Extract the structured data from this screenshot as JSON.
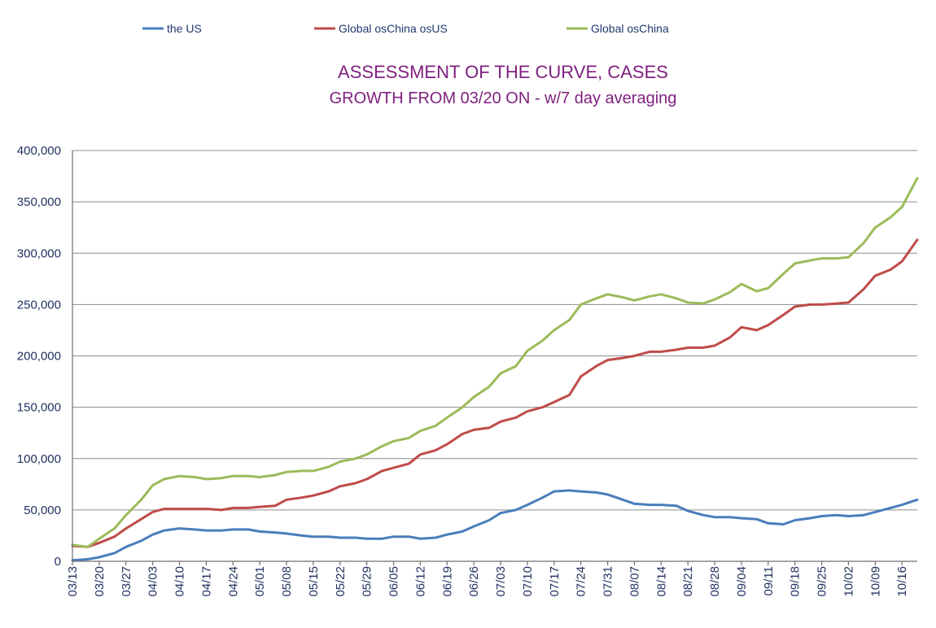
{
  "chart_data": {
    "type": "line",
    "title": "ASSESSMENT OF THE CURVE, CASES",
    "subtitle": "GROWTH FROM 03/20 ON - w/7 day averaging",
    "xlabel": "",
    "ylabel": "",
    "ylim": [
      0,
      400000
    ],
    "y_ticks": [
      0,
      50000,
      100000,
      150000,
      200000,
      250000,
      300000,
      350000,
      400000
    ],
    "y_tick_labels": [
      "0",
      "50,000",
      "100,000",
      "150,000",
      "200,000",
      "250,000",
      "300,000",
      "350,000",
      "400,000"
    ],
    "x_tick_labels": [
      "03/13",
      "03/20",
      "03/27",
      "04/03",
      "04/10",
      "04/17",
      "04/24",
      "05/01",
      "05/08",
      "05/15",
      "05/22",
      "05/29",
      "06/05",
      "06/12",
      "06/19",
      "06/26",
      "07/03",
      "07/10",
      "07/17",
      "07/24",
      "07/31",
      "08/07",
      "08/14",
      "08/21",
      "08/28",
      "09/04",
      "09/11",
      "09/18",
      "09/25",
      "10/02",
      "10/09",
      "10/16"
    ],
    "x_start": "03/13",
    "x_end": "10/20",
    "grid": true,
    "legend_position": "top",
    "series": [
      {
        "name": "the US",
        "color": "#4a7ebb",
        "x": [
          "03/13",
          "03/17",
          "03/20",
          "03/24",
          "03/27",
          "03/31",
          "04/03",
          "04/06",
          "04/10",
          "04/14",
          "04/17",
          "04/21",
          "04/24",
          "04/28",
          "05/01",
          "05/05",
          "05/08",
          "05/12",
          "05/15",
          "05/19",
          "05/22",
          "05/26",
          "05/29",
          "06/02",
          "06/05",
          "06/09",
          "06/12",
          "06/16",
          "06/19",
          "06/23",
          "06/26",
          "06/30",
          "07/03",
          "07/07",
          "07/10",
          "07/14",
          "07/17",
          "07/21",
          "07/24",
          "07/28",
          "07/31",
          "08/04",
          "08/07",
          "08/11",
          "08/14",
          "08/18",
          "08/21",
          "08/25",
          "08/28",
          "09/01",
          "09/04",
          "09/08",
          "09/11",
          "09/15",
          "09/18",
          "09/22",
          "09/25",
          "09/29",
          "10/02",
          "10/06",
          "10/09",
          "10/13",
          "10/16",
          "10/20"
        ],
        "values": [
          1000,
          2000,
          4000,
          8000,
          14000,
          20000,
          26000,
          30000,
          32000,
          31000,
          30000,
          30000,
          31000,
          31000,
          29000,
          28000,
          27000,
          25000,
          24000,
          24000,
          23000,
          23000,
          22000,
          22000,
          24000,
          24000,
          22000,
          23000,
          26000,
          29000,
          34000,
          40000,
          47000,
          50000,
          55000,
          62000,
          68000,
          69000,
          68000,
          67000,
          65000,
          60000,
          56000,
          55000,
          55000,
          54000,
          49000,
          45000,
          43000,
          43000,
          42000,
          41000,
          37000,
          36000,
          40000,
          42000,
          44000,
          45000,
          44000,
          45000,
          48000,
          52000,
          55000,
          60000
        ]
      },
      {
        "name": "Global osChina osUS",
        "color": "#be4b48",
        "x": [
          "03/13",
          "03/17",
          "03/20",
          "03/24",
          "03/27",
          "03/31",
          "04/03",
          "04/06",
          "04/10",
          "04/14",
          "04/17",
          "04/21",
          "04/24",
          "04/28",
          "05/01",
          "05/05",
          "05/08",
          "05/12",
          "05/15",
          "05/19",
          "05/22",
          "05/26",
          "05/29",
          "06/02",
          "06/05",
          "06/09",
          "06/12",
          "06/16",
          "06/19",
          "06/23",
          "06/26",
          "06/30",
          "07/03",
          "07/07",
          "07/10",
          "07/14",
          "07/17",
          "07/21",
          "07/24",
          "07/28",
          "07/31",
          "08/04",
          "08/07",
          "08/11",
          "08/14",
          "08/18",
          "08/21",
          "08/25",
          "08/28",
          "09/01",
          "09/04",
          "09/08",
          "09/11",
          "09/15",
          "09/18",
          "09/22",
          "09/25",
          "09/29",
          "10/02",
          "10/06",
          "10/09",
          "10/13",
          "10/16",
          "10/20"
        ],
        "values": [
          15000,
          14000,
          18000,
          24000,
          32000,
          41000,
          48000,
          51000,
          51000,
          51000,
          51000,
          50000,
          52000,
          52000,
          53000,
          54000,
          60000,
          62000,
          64000,
          68000,
          73000,
          76000,
          80000,
          88000,
          91000,
          95000,
          104000,
          108000,
          114000,
          124000,
          128000,
          130000,
          136000,
          140000,
          146000,
          150000,
          155000,
          162000,
          180000,
          190000,
          196000,
          198000,
          200000,
          204000,
          204000,
          206000,
          208000,
          208000,
          210000,
          218000,
          228000,
          225000,
          230000,
          240000,
          248000,
          250000,
          250000,
          251000,
          252000,
          265000,
          278000,
          284000,
          292000,
          313000
        ]
      },
      {
        "name": "Global osChina",
        "color": "#9bbb59",
        "x": [
          "03/13",
          "03/17",
          "03/20",
          "03/24",
          "03/27",
          "03/31",
          "04/03",
          "04/06",
          "04/10",
          "04/14",
          "04/17",
          "04/21",
          "04/24",
          "04/28",
          "05/01",
          "05/05",
          "05/08",
          "05/12",
          "05/15",
          "05/19",
          "05/22",
          "05/26",
          "05/29",
          "06/02",
          "06/05",
          "06/09",
          "06/12",
          "06/16",
          "06/19",
          "06/23",
          "06/26",
          "06/30",
          "07/03",
          "07/07",
          "07/10",
          "07/14",
          "07/17",
          "07/21",
          "07/24",
          "07/28",
          "07/31",
          "08/04",
          "08/07",
          "08/11",
          "08/14",
          "08/18",
          "08/21",
          "08/25",
          "08/28",
          "09/01",
          "09/04",
          "09/08",
          "09/11",
          "09/15",
          "09/18",
          "09/22",
          "09/25",
          "09/29",
          "10/02",
          "10/06",
          "10/09",
          "10/13",
          "10/16",
          "10/20"
        ],
        "values": [
          16000,
          14000,
          22000,
          32000,
          45000,
          60000,
          74000,
          80000,
          83000,
          82000,
          80000,
          81000,
          83000,
          83000,
          82000,
          84000,
          87000,
          88000,
          88000,
          92000,
          97000,
          100000,
          104000,
          112000,
          117000,
          120000,
          127000,
          132000,
          140000,
          150000,
          160000,
          170000,
          183000,
          190000,
          205000,
          215000,
          225000,
          235000,
          250000,
          256000,
          260000,
          257000,
          254000,
          258000,
          260000,
          256000,
          252000,
          251000,
          255000,
          262000,
          270000,
          263000,
          266000,
          280000,
          290000,
          293000,
          295000,
          295000,
          296000,
          310000,
          325000,
          335000,
          345000,
          373000
        ]
      }
    ]
  }
}
